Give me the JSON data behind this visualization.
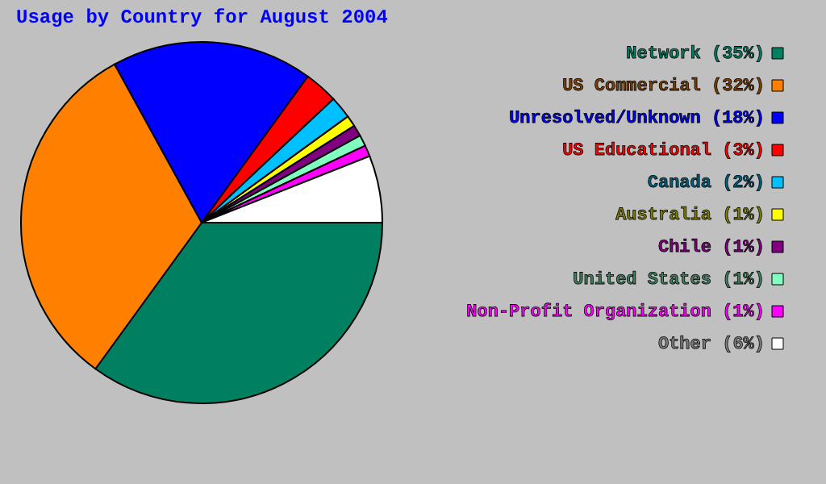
{
  "chart_data": {
    "type": "pie",
    "title": "Usage by Country for August 2004",
    "categories": [
      "Network (35%)",
      "US Commercial (32%)",
      "Unresolved/Unknown (18%)",
      "US Educational (3%)",
      "Canada (2%)",
      "Australia (1%)",
      "Chile (1%)",
      "United States (1%)",
      "Non-Profit Organization (1%)",
      "Other (6%)"
    ],
    "values": [
      35,
      32,
      18,
      3,
      2,
      1,
      1,
      1,
      1,
      6
    ],
    "colors": [
      "#008060",
      "#ff8000",
      "#0000ff",
      "#ff0000",
      "#00c0ff",
      "#ffff00",
      "#800080",
      "#80ffc0",
      "#ff00ff",
      "#ffffff"
    ],
    "legend": "right"
  }
}
